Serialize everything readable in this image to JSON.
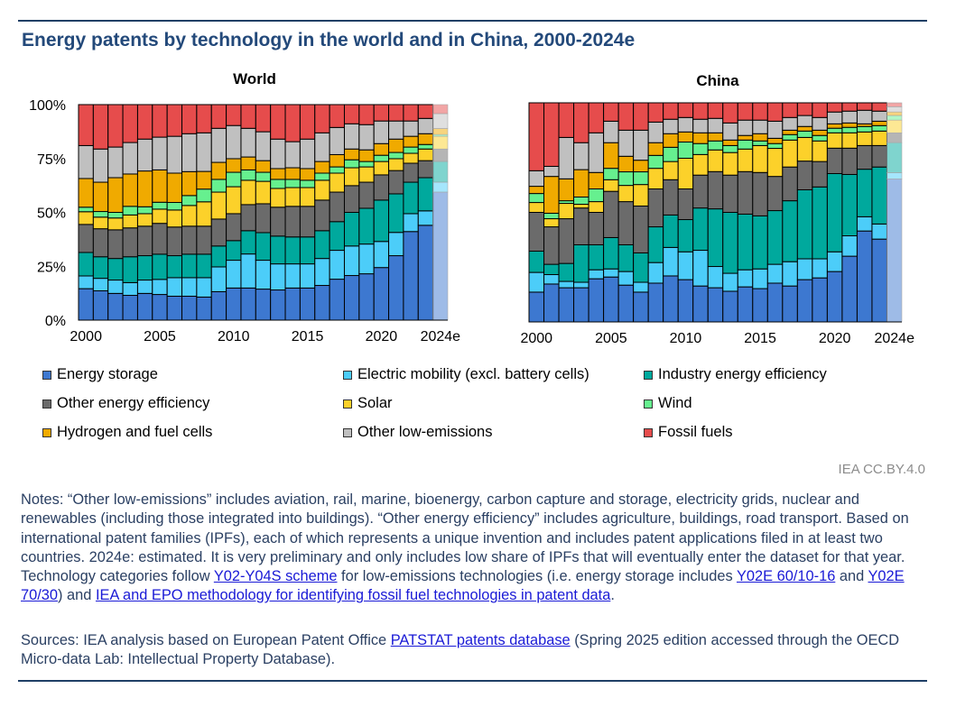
{
  "title": "Energy patents by technology in the world and in China, 2000-2024e",
  "credit": "IEA CC.BY.4.0",
  "legend": [
    {
      "label": "Energy storage",
      "color": "#3d78d0"
    },
    {
      "label": "Electric mobility (excl. battery cells)",
      "color": "#4ccdf9"
    },
    {
      "label": "Industry energy efficiency",
      "color": "#00a99d"
    },
    {
      "label": "Other energy efficiency",
      "color": "#6b6b6b"
    },
    {
      "label": "Solar",
      "color": "#fcd12a"
    },
    {
      "label": "Wind",
      "color": "#66f08f"
    },
    {
      "label": "Hydrogen and fuel cells",
      "color": "#f0aa00"
    },
    {
      "label": "Other low-emissions",
      "color": "#c0c0c0"
    },
    {
      "label": "Fossil fuels",
      "color": "#e64c4c"
    }
  ],
  "notes": [
    {
      "text": "Notes: “Other low-emissions” includes aviation, rail, marine, bioenergy, carbon capture and storage, electricity grids, nuclear and renewables (including those integrated into buildings). “Other energy efficiency” includes agriculture, buildings, road transport. Based on international patent families (IPFs), each of which represents a unique invention and includes patent applications filed in at least two countries. 2024e: estimated. It is very preliminary and only includes low share of IPFs that will eventually enter the dataset for that year. Technology categories follow ",
      "link": false
    },
    {
      "text": "Y02-Y04S scheme",
      "link": true
    },
    {
      "text": " for low-emissions technologies (i.e. energy storage includes ",
      "link": false
    },
    {
      "text": "Y02E 60/10-16",
      "link": true
    },
    {
      "text": " and ",
      "link": false
    },
    {
      "text": "Y02E 70/30",
      "link": true
    },
    {
      "text": ") and ",
      "link": false
    },
    {
      "text": "IEA and EPO methodology for identifying fossil fuel technologies in patent data",
      "link": true
    },
    {
      "text": ".",
      "link": false
    }
  ],
  "sources": [
    {
      "text": "Sources: IEA analysis based on European Patent Office ",
      "link": false
    },
    {
      "text": "PATSTAT patents database",
      "link": true
    },
    {
      "text": " (Spring 2025 edition accessed through the OECD Micro-data Lab: Intellectual Property Database).",
      "link": false
    }
  ],
  "chart_data": [
    {
      "type": "bar",
      "stacked": true,
      "normalized": true,
      "title": "World",
      "categories": [
        "2000",
        "2001",
        "2002",
        "2003",
        "2004",
        "2005",
        "2006",
        "2007",
        "2008",
        "2009",
        "2010",
        "2011",
        "2012",
        "2013",
        "2014",
        "2015",
        "2016",
        "2017",
        "2018",
        "2019",
        "2020",
        "2021",
        "2022",
        "2023",
        "2024e"
      ],
      "x_tick_labels": [
        "2000",
        "2005",
        "2010",
        "2015",
        "2020",
        "2024e"
      ],
      "y_tick_labels": [
        "0%",
        "25%",
        "50%",
        "75%",
        "100%"
      ],
      "ylim": [
        0,
        100
      ],
      "estimated_category": "2024e",
      "series": [
        {
          "name": "Energy storage",
          "values": [
            14.6,
            13.6,
            12.4,
            11.5,
            12.4,
            11.9,
            11.1,
            11.1,
            10.7,
            13.2,
            14.9,
            14.9,
            14.4,
            14.0,
            14.9,
            14.9,
            16.1,
            19.0,
            20.7,
            21.5,
            24.4,
            29.9,
            41.1,
            44.0,
            59.4
          ]
        },
        {
          "name": "Electric mobility (excl. battery cells)",
          "values": [
            5.9,
            5.8,
            6.2,
            5.9,
            6.2,
            7.0,
            8.6,
            8.6,
            9.0,
            11.5,
            12.9,
            15.8,
            13.4,
            12.1,
            11.2,
            11.2,
            12.5,
            13.4,
            13.7,
            13.8,
            12.1,
            10.8,
            8.3,
            6.7,
            4.6
          ]
        },
        {
          "name": "Industry energy efficiency",
          "values": [
            10.9,
            10.0,
            10.0,
            12.0,
            11.3,
            11.7,
            10.2,
            10.9,
            10.9,
            9.7,
            9.1,
            10.8,
            12.8,
            12.9,
            12.5,
            12.5,
            12.9,
            13.3,
            15.6,
            16.6,
            19.2,
            17.9,
            14.6,
            15.4,
            9.6
          ]
        },
        {
          "name": "Other energy efficiency",
          "values": [
            13.0,
            13.0,
            13.3,
            13.4,
            13.7,
            14.3,
            13.3,
            13.0,
            13.0,
            12.5,
            12.5,
            12.1,
            13.4,
            13.4,
            14.2,
            14.2,
            14.2,
            13.7,
            12.4,
            12.1,
            11.7,
            10.8,
            8.8,
            7.9,
            5.8
          ]
        },
        {
          "name": "Solar",
          "values": [
            5.9,
            5.4,
            5.5,
            6.0,
            5.8,
            6.6,
            7.9,
            9.6,
            11.3,
            12.5,
            12.5,
            11.3,
            10.4,
            8.7,
            8.7,
            8.7,
            9.2,
            8.8,
            8.3,
            7.1,
            6.2,
            5.5,
            4.6,
            5.4,
            5.9
          ]
        },
        {
          "name": "Wind",
          "values": [
            2.1,
            2.6,
            2.6,
            4.0,
            3.2,
            3.2,
            3.5,
            4.6,
            5.9,
            5.9,
            6.7,
            4.8,
            4.2,
            4.2,
            3.8,
            3.4,
            3.3,
            2.9,
            3.7,
            2.5,
            2.9,
            2.9,
            2.9,
            2.1,
            0.8
          ]
        },
        {
          "name": "Hydrogen and fuel cells",
          "values": [
            13.3,
            13.6,
            16.1,
            15.0,
            16.6,
            15.0,
            13.6,
            11.1,
            8.2,
            7.9,
            6.3,
            6.0,
            5.4,
            5.0,
            5.4,
            5.4,
            5.4,
            5.7,
            5.0,
            5.4,
            5.4,
            6.2,
            5.0,
            5.0,
            2.8
          ]
        },
        {
          "name": "Other low-emissions",
          "values": [
            15.3,
            15.4,
            14.2,
            14.6,
            14.8,
            15.2,
            17.1,
            17.6,
            17.9,
            15.8,
            15.4,
            13.3,
            13.4,
            13.7,
            12.1,
            13.7,
            13.3,
            12.6,
            11.7,
            11.7,
            10.5,
            8.4,
            7.1,
            7.1,
            6.9
          ]
        },
        {
          "name": "Fossil fuels",
          "values": [
            19.0,
            20.6,
            19.7,
            17.6,
            16.0,
            15.1,
            14.7,
            13.5,
            13.1,
            11.0,
            9.7,
            11.0,
            12.6,
            16.0,
            17.2,
            16.0,
            13.1,
            10.6,
            8.9,
            9.3,
            7.6,
            7.6,
            7.6,
            6.4,
            4.2
          ]
        }
      ]
    },
    {
      "type": "bar",
      "stacked": true,
      "normalized": true,
      "title": "China",
      "categories": [
        "2000",
        "2001",
        "2002",
        "2003",
        "2004",
        "2005",
        "2006",
        "2007",
        "2008",
        "2009",
        "2010",
        "2011",
        "2012",
        "2013",
        "2014",
        "2015",
        "2016",
        "2017",
        "2018",
        "2019",
        "2020",
        "2021",
        "2022",
        "2023",
        "2024e"
      ],
      "x_tick_labels": [
        "2000",
        "2005",
        "2010",
        "2015",
        "2020",
        "2024e"
      ],
      "ylim": [
        0,
        100
      ],
      "estimated_category": "2024e",
      "series": [
        {
          "name": "Energy storage",
          "values": [
            13.6,
            17.3,
            15.6,
            15.6,
            19.7,
            20.5,
            16.8,
            13.6,
            17.7,
            21.0,
            19.3,
            16.4,
            15.6,
            14.0,
            16.0,
            15.2,
            17.7,
            16.4,
            19.3,
            20.1,
            23.0,
            30.0,
            41.5,
            37.8,
            65.3
          ]
        },
        {
          "name": "Electric mobility (excl. battery cells)",
          "values": [
            9.0,
            4.3,
            2.9,
            2.5,
            4.1,
            3.7,
            6.2,
            4.5,
            9.4,
            13.0,
            12.7,
            16.3,
            9.7,
            8.2,
            7.8,
            9.0,
            8.6,
            11.1,
            9.5,
            8.7,
            9.0,
            9.3,
            6.5,
            6.9,
            2.8
          ]
        },
        {
          "name": "Industry energy efficiency",
          "values": [
            9.7,
            4.7,
            8.2,
            17.1,
            11.4,
            14.3,
            12.2,
            13.4,
            16.3,
            14.8,
            14.7,
            19.3,
            26.3,
            27.8,
            25.4,
            24.2,
            24.5,
            27.8,
            31.5,
            32.8,
            35.7,
            28.0,
            21.7,
            26.0,
            13.7
          ]
        },
        {
          "name": "Other energy efficiency",
          "values": [
            17.7,
            17.1,
            20.4,
            16.8,
            14.8,
            21.1,
            19.7,
            21.4,
            17.3,
            16.1,
            14.0,
            15.0,
            17.0,
            17.0,
            19.4,
            19.8,
            15.6,
            15.4,
            13.1,
            11.6,
            11.6,
            12.0,
            10.8,
            9.8,
            4.5
          ]
        },
        {
          "name": "Solar",
          "values": [
            4.5,
            3.7,
            7.0,
            1.7,
            4.9,
            5.3,
            7.4,
            9.8,
            9.4,
            8.3,
            14.0,
            9.4,
            9.9,
            10.3,
            10.3,
            12.3,
            12.8,
            12.3,
            10.8,
            9.4,
            7.0,
            7.0,
            6.2,
            6.6,
            5.8
          ]
        },
        {
          "name": "Wind",
          "values": [
            4.1,
            2.5,
            1.2,
            3.3,
            5.8,
            5.2,
            6.2,
            5.8,
            5.9,
            6.5,
            7.4,
            5.0,
            4.1,
            3.2,
            4.1,
            2.1,
            2.2,
            2.5,
            2.9,
            2.5,
            2.1,
            2.5,
            2.5,
            2.5,
            2.1
          ]
        },
        {
          "name": "Hydrogen and fuel cells",
          "values": [
            3.3,
            16.8,
            10.0,
            12.5,
            7.5,
            11.7,
            7.1,
            5.3,
            5.8,
            6.2,
            4.6,
            4.9,
            3.7,
            2.5,
            2.1,
            3.3,
            2.4,
            2.0,
            2.1,
            2.4,
            2.0,
            2.0,
            1.2,
            2.0,
            1.6
          ]
        },
        {
          "name": "Other low-emissions",
          "values": [
            7.1,
            4.6,
            18.9,
            12.3,
            18.1,
            9.8,
            11.9,
            13.7,
            9.4,
            6.6,
            6.6,
            6.2,
            6.6,
            7.8,
            7.0,
            6.2,
            7.8,
            5.8,
            5.0,
            5.8,
            5.4,
            5.4,
            6.2,
            4.6,
            2.4
          ]
        },
        {
          "name": "Fossil fuels",
          "values": [
            31.0,
            29.0,
            15.8,
            18.2,
            13.7,
            8.4,
            12.5,
            12.5,
            8.8,
            7.5,
            6.7,
            7.5,
            7.1,
            9.2,
            7.9,
            7.9,
            8.4,
            6.7,
            5.8,
            6.7,
            4.2,
            3.8,
            3.4,
            3.8,
            1.8
          ]
        }
      ]
    }
  ]
}
